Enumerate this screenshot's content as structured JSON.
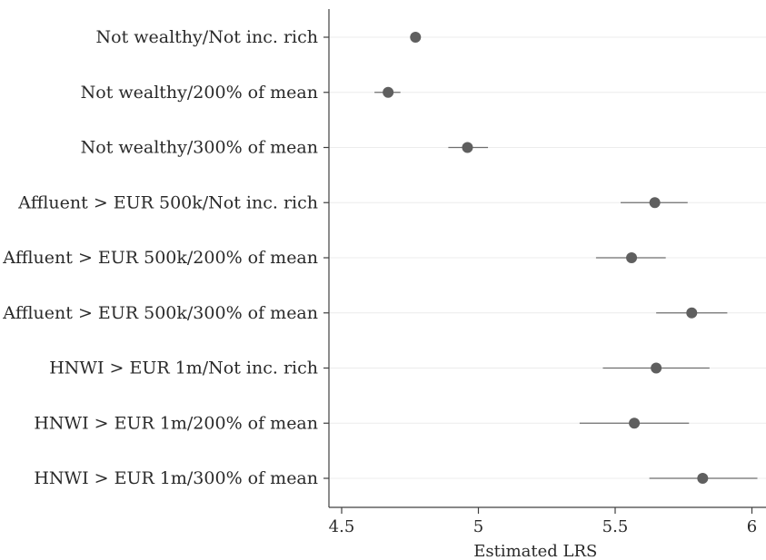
{
  "chart_data": {
    "type": "scatter",
    "title": "",
    "xlabel": "Estimated LRS",
    "ylabel": "",
    "xlim": [
      4.5,
      6.05
    ],
    "xticks": [
      4.5,
      5,
      5.5,
      6
    ],
    "xtick_labels": [
      "4.5",
      "5",
      "5.5",
      "6"
    ],
    "grid": "horizontal",
    "categories": [
      "Not wealthy/Not inc. rich",
      "Not wealthy/200% of mean",
      "Not wealthy/300% of mean",
      "Affluent > EUR 500k/Not inc. rich",
      "Affluent > EUR 500k/200% of mean",
      "Affluent > EUR 500k/300% of mean",
      "HNWI > EUR 1m/Not inc. rich",
      "HNWI > EUR 1m/200% of mean",
      "HNWI > EUR 1m/300% of mean"
    ],
    "series": [
      {
        "values": [
          4.77,
          4.67,
          4.96,
          5.645,
          5.56,
          5.78,
          5.65,
          5.57,
          5.82
        ],
        "ci_low": [
          4.755,
          4.62,
          4.89,
          5.52,
          5.43,
          5.65,
          5.455,
          5.37,
          5.625
        ],
        "ci_high": [
          4.785,
          4.715,
          5.035,
          5.765,
          5.685,
          5.91,
          5.845,
          5.77,
          6.02
        ]
      }
    ],
    "colors": {
      "point": "#5f5f5f",
      "ci": "#6e6e6e",
      "grid": "#ececec",
      "axis": "#404040"
    }
  }
}
